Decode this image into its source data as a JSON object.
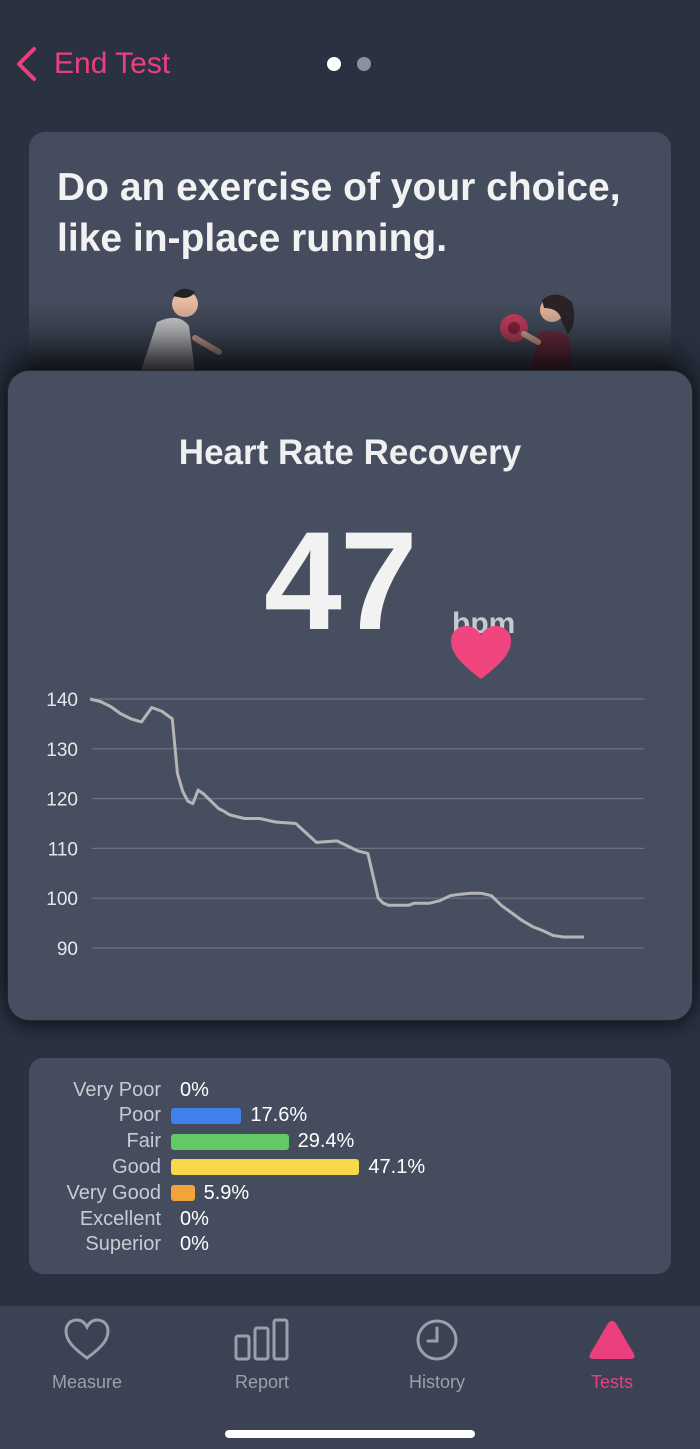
{
  "header": {
    "back_label": "End Test",
    "pager": {
      "total": 2,
      "active_index": 0
    }
  },
  "instruction": {
    "text": "Do an exercise of your choice, like in-place running."
  },
  "result": {
    "title": "Heart Rate Recovery",
    "value": "47",
    "unit": "bpm"
  },
  "chart_data": {
    "type": "line",
    "title": "",
    "xlabel": "",
    "ylabel": "",
    "ylim": [
      88,
      142
    ],
    "yticks": [
      140,
      130,
      120,
      110,
      100,
      90
    ],
    "grid": true,
    "series": [
      {
        "color": "#b5b5b5",
        "x": [
          0,
          2,
          4,
          6,
          8,
          10,
          12,
          14,
          16,
          17,
          18,
          19,
          20,
          21,
          22,
          23,
          24,
          25,
          26,
          27,
          28,
          30,
          33,
          36,
          40,
          44,
          48,
          52,
          54,
          56,
          57,
          58,
          59,
          60,
          61,
          62,
          63,
          64,
          66,
          68,
          70,
          72,
          74,
          76,
          78,
          80,
          82,
          84,
          86,
          88,
          90,
          92,
          93,
          94,
          96
        ],
        "y": [
          140,
          139.5,
          138.5,
          137,
          136,
          135.4,
          138.3,
          137.5,
          136,
          125,
          121.5,
          119.5,
          119,
          121.7,
          121,
          120,
          119,
          118,
          117.5,
          116.8,
          116.5,
          116,
          116,
          115.3,
          115,
          111.2,
          111.5,
          109.5,
          109,
          100,
          99,
          98.6,
          98.6,
          98.6,
          98.6,
          98.6,
          99,
          99,
          99,
          99.5,
          100.5,
          100.8,
          101,
          101,
          100.5,
          98.5,
          97,
          95.5,
          94.3,
          93.5,
          92.5,
          92.2,
          92.2,
          92.2,
          92.2
        ]
      }
    ]
  },
  "distribution": {
    "rows": [
      {
        "label": "Very Poor",
        "pct": "0%",
        "value": 0,
        "color": ""
      },
      {
        "label": "Poor",
        "pct": "17.6%",
        "value": 17.6,
        "color": "#3f82ee"
      },
      {
        "label": "Fair",
        "pct": "29.4%",
        "value": 29.4,
        "color": "#62c965"
      },
      {
        "label": "Good",
        "pct": "47.1%",
        "value": 47.1,
        "color": "#f8d84a"
      },
      {
        "label": "Very Good",
        "pct": "5.9%",
        "value": 5.9,
        "color": "#f2a33a"
      },
      {
        "label": "Excellent",
        "pct": "0%",
        "value": 0,
        "color": ""
      },
      {
        "label": "Superior",
        "pct": "0%",
        "value": 0,
        "color": ""
      }
    ]
  },
  "tabs": [
    {
      "label": "Measure",
      "icon": "heart-outline-icon"
    },
    {
      "label": "Report",
      "icon": "bar-chart-icon"
    },
    {
      "label": "History",
      "icon": "clock-icon"
    },
    {
      "label": "Tests",
      "icon": "triangle-icon",
      "active": true
    }
  ],
  "colors": {
    "accent": "#ec3f7e",
    "background": "#2a3242",
    "card": "#444c5d"
  }
}
